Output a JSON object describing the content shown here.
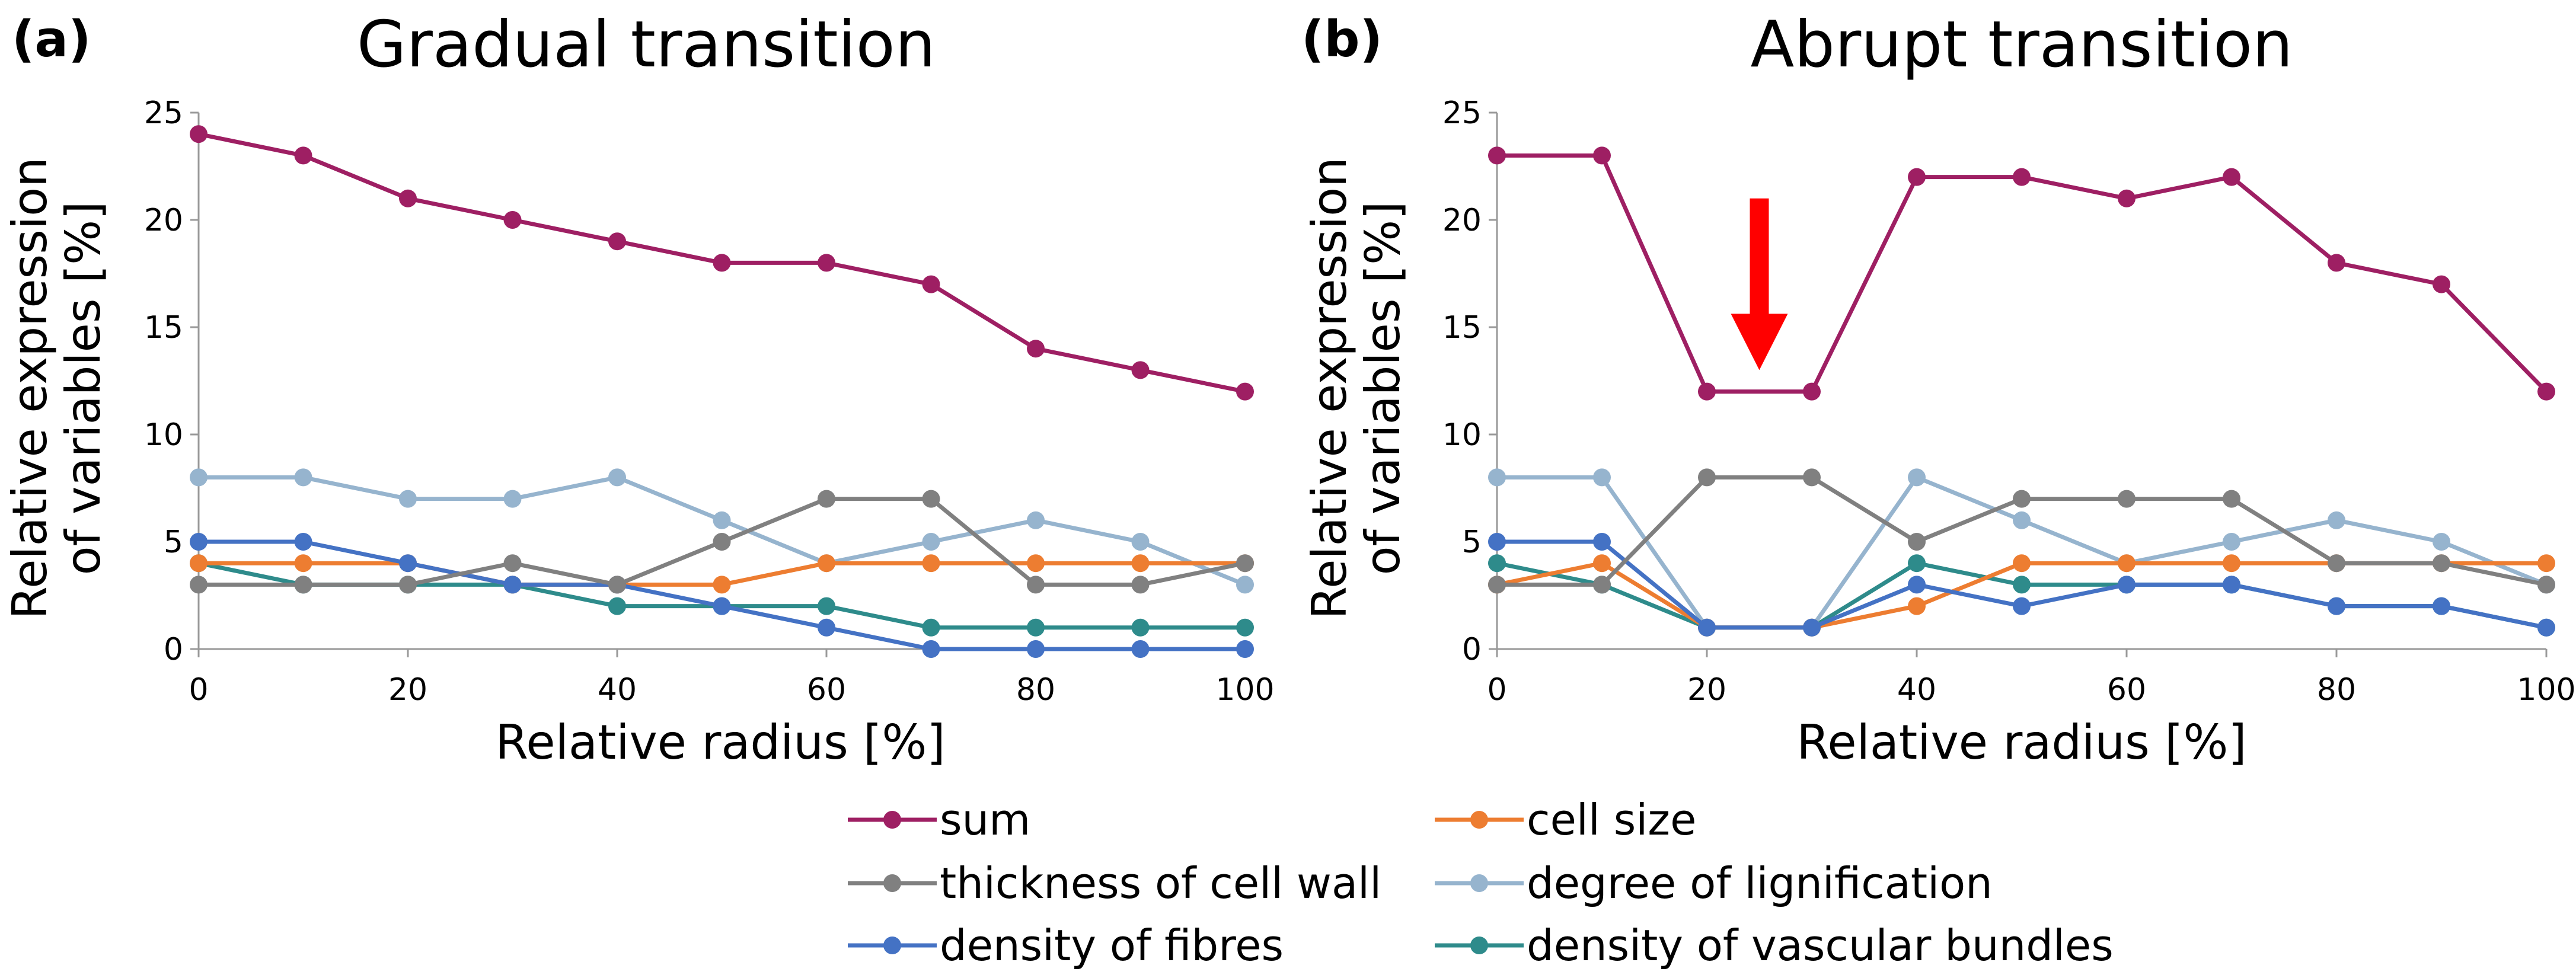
{
  "chart_data": [
    {
      "type": "line",
      "panel_label": "(a)",
      "title": "Gradual transition",
      "xlabel": "Relative radius [%]",
      "ylabel_lines": [
        "Relative expression",
        "of variables [%]"
      ],
      "xlim": [
        0,
        100
      ],
      "ylim": [
        0,
        25
      ],
      "x_ticks": [
        "0",
        "20",
        "40",
        "60",
        "80",
        "100"
      ],
      "y_ticks": [
        "0",
        "5",
        "10",
        "15",
        "20",
        "25"
      ],
      "x": [
        0,
        10,
        20,
        30,
        40,
        50,
        60,
        70,
        80,
        90,
        100
      ],
      "series": [
        {
          "name": "sum",
          "color": "#9E1F63",
          "values": [
            24,
            23,
            21,
            20,
            19,
            18,
            18,
            17,
            14,
            13,
            12
          ]
        },
        {
          "name": "thickness of cell wall",
          "color": "#808080",
          "values": [
            3,
            3,
            3,
            4,
            3,
            5,
            7,
            7,
            3,
            3,
            4
          ]
        },
        {
          "name": "density of fibres",
          "color": "#4472C4",
          "values": [
            5,
            5,
            4,
            3,
            3,
            2,
            1,
            0,
            0,
            0,
            0
          ]
        },
        {
          "name": "cell size",
          "color": "#ED7D31",
          "values": [
            4,
            4,
            4,
            3,
            3,
            3,
            4,
            4,
            4,
            4,
            4
          ]
        },
        {
          "name": "degree of lignification",
          "color": "#96B4CE",
          "values": [
            8,
            8,
            7,
            7,
            8,
            6,
            4,
            5,
            6,
            5,
            3
          ]
        },
        {
          "name": "density of vascular bundles",
          "color": "#2E8B8B",
          "values": [
            4,
            3,
            3,
            3,
            2,
            2,
            2,
            1,
            1,
            1,
            1
          ]
        }
      ]
    },
    {
      "type": "line",
      "panel_label": "(b)",
      "title": "Abrupt transition",
      "xlabel": "Relative radius [%]",
      "ylabel_lines": [
        "Relative expression",
        "of variables [%]"
      ],
      "xlim": [
        0,
        100
      ],
      "ylim": [
        0,
        25
      ],
      "x_ticks": [
        "0",
        "20",
        "40",
        "60",
        "80",
        "100"
      ],
      "y_ticks": [
        "0",
        "5",
        "10",
        "15",
        "20",
        "25"
      ],
      "x": [
        0,
        10,
        20,
        30,
        40,
        50,
        60,
        70,
        80,
        90,
        100
      ],
      "annotation": {
        "type": "arrow",
        "color": "#FF0000",
        "x": 25,
        "y_from": 21,
        "y_to": 13
      },
      "series": [
        {
          "name": "sum",
          "color": "#9E1F63",
          "values": [
            23,
            23,
            12,
            12,
            22,
            22,
            21,
            22,
            18,
            17,
            12
          ]
        },
        {
          "name": "thickness of cell wall",
          "color": "#808080",
          "values": [
            3,
            3,
            8,
            8,
            5,
            7,
            7,
            7,
            4,
            4,
            3
          ]
        },
        {
          "name": "density of fibres",
          "color": "#4472C4",
          "values": [
            5,
            5,
            1,
            1,
            3,
            2,
            3,
            3,
            2,
            2,
            1
          ]
        },
        {
          "name": "cell size",
          "color": "#ED7D31",
          "values": [
            3,
            4,
            1,
            1,
            2,
            4,
            4,
            4,
            4,
            4,
            4
          ]
        },
        {
          "name": "degree of lignification",
          "color": "#96B4CE",
          "values": [
            8,
            8,
            1,
            1,
            8,
            6,
            4,
            5,
            6,
            5,
            3
          ]
        },
        {
          "name": "density of vascular bundles",
          "color": "#2E8B8B",
          "values": [
            4,
            3,
            1,
            1,
            4,
            3,
            3,
            3,
            2,
            2,
            1
          ]
        }
      ]
    }
  ],
  "legend": {
    "items": [
      {
        "label": "sum",
        "color": "#9E1F63"
      },
      {
        "label": "cell size",
        "color": "#ED7D31"
      },
      {
        "label": "thickness of cell wall",
        "color": "#808080"
      },
      {
        "label": "degree of lignification",
        "color": "#96B4CE"
      },
      {
        "label": "density of fibres",
        "color": "#4472C4"
      },
      {
        "label": "density of vascular bundles",
        "color": "#2E8B8B"
      }
    ]
  }
}
